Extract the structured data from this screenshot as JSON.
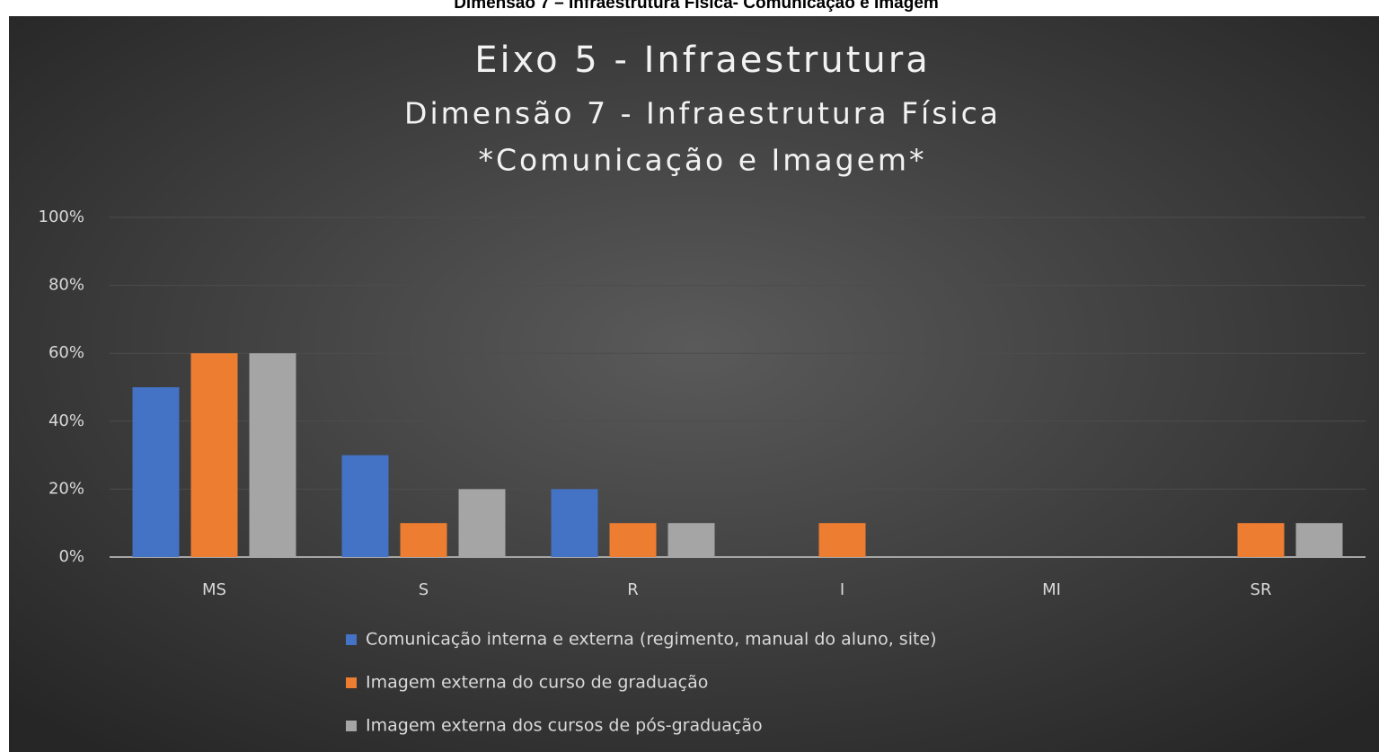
{
  "caption": "Dimensão 7 – Infraestrutura Física- Comunicação e Imagem",
  "chart_data": {
    "type": "bar",
    "title": "Eixo 5 - Infraestrutura",
    "subtitle": [
      "Dimensão 7 - Infraestrutura Física",
      "*Comunicação e Imagem*"
    ],
    "categories": [
      "MS",
      "S",
      "R",
      "I",
      "MI",
      "SR"
    ],
    "series": [
      {
        "name": "Comunicação interna e externa (regimento, manual do aluno, site)",
        "color": "#4472c4",
        "values": [
          50,
          30,
          20,
          0,
          0,
          0
        ]
      },
      {
        "name": "Imagem externa do curso de graduação",
        "color": "#ed7d31",
        "values": [
          60,
          10,
          10,
          10,
          0,
          10
        ]
      },
      {
        "name": "Imagem externa dos cursos de pós-graduação",
        "color": "#a5a5a5",
        "values": [
          60,
          20,
          10,
          0,
          0,
          10
        ]
      }
    ],
    "ylim": [
      0,
      100
    ],
    "yticks": [
      {
        "value": 0,
        "label": "0%"
      },
      {
        "value": 20,
        "label": "20%"
      },
      {
        "value": 40,
        "label": "40%"
      },
      {
        "value": 60,
        "label": "60%"
      },
      {
        "value": 80,
        "label": "80%"
      },
      {
        "value": 100,
        "label": "100%"
      }
    ],
    "grid": true,
    "legend": "bottom"
  }
}
